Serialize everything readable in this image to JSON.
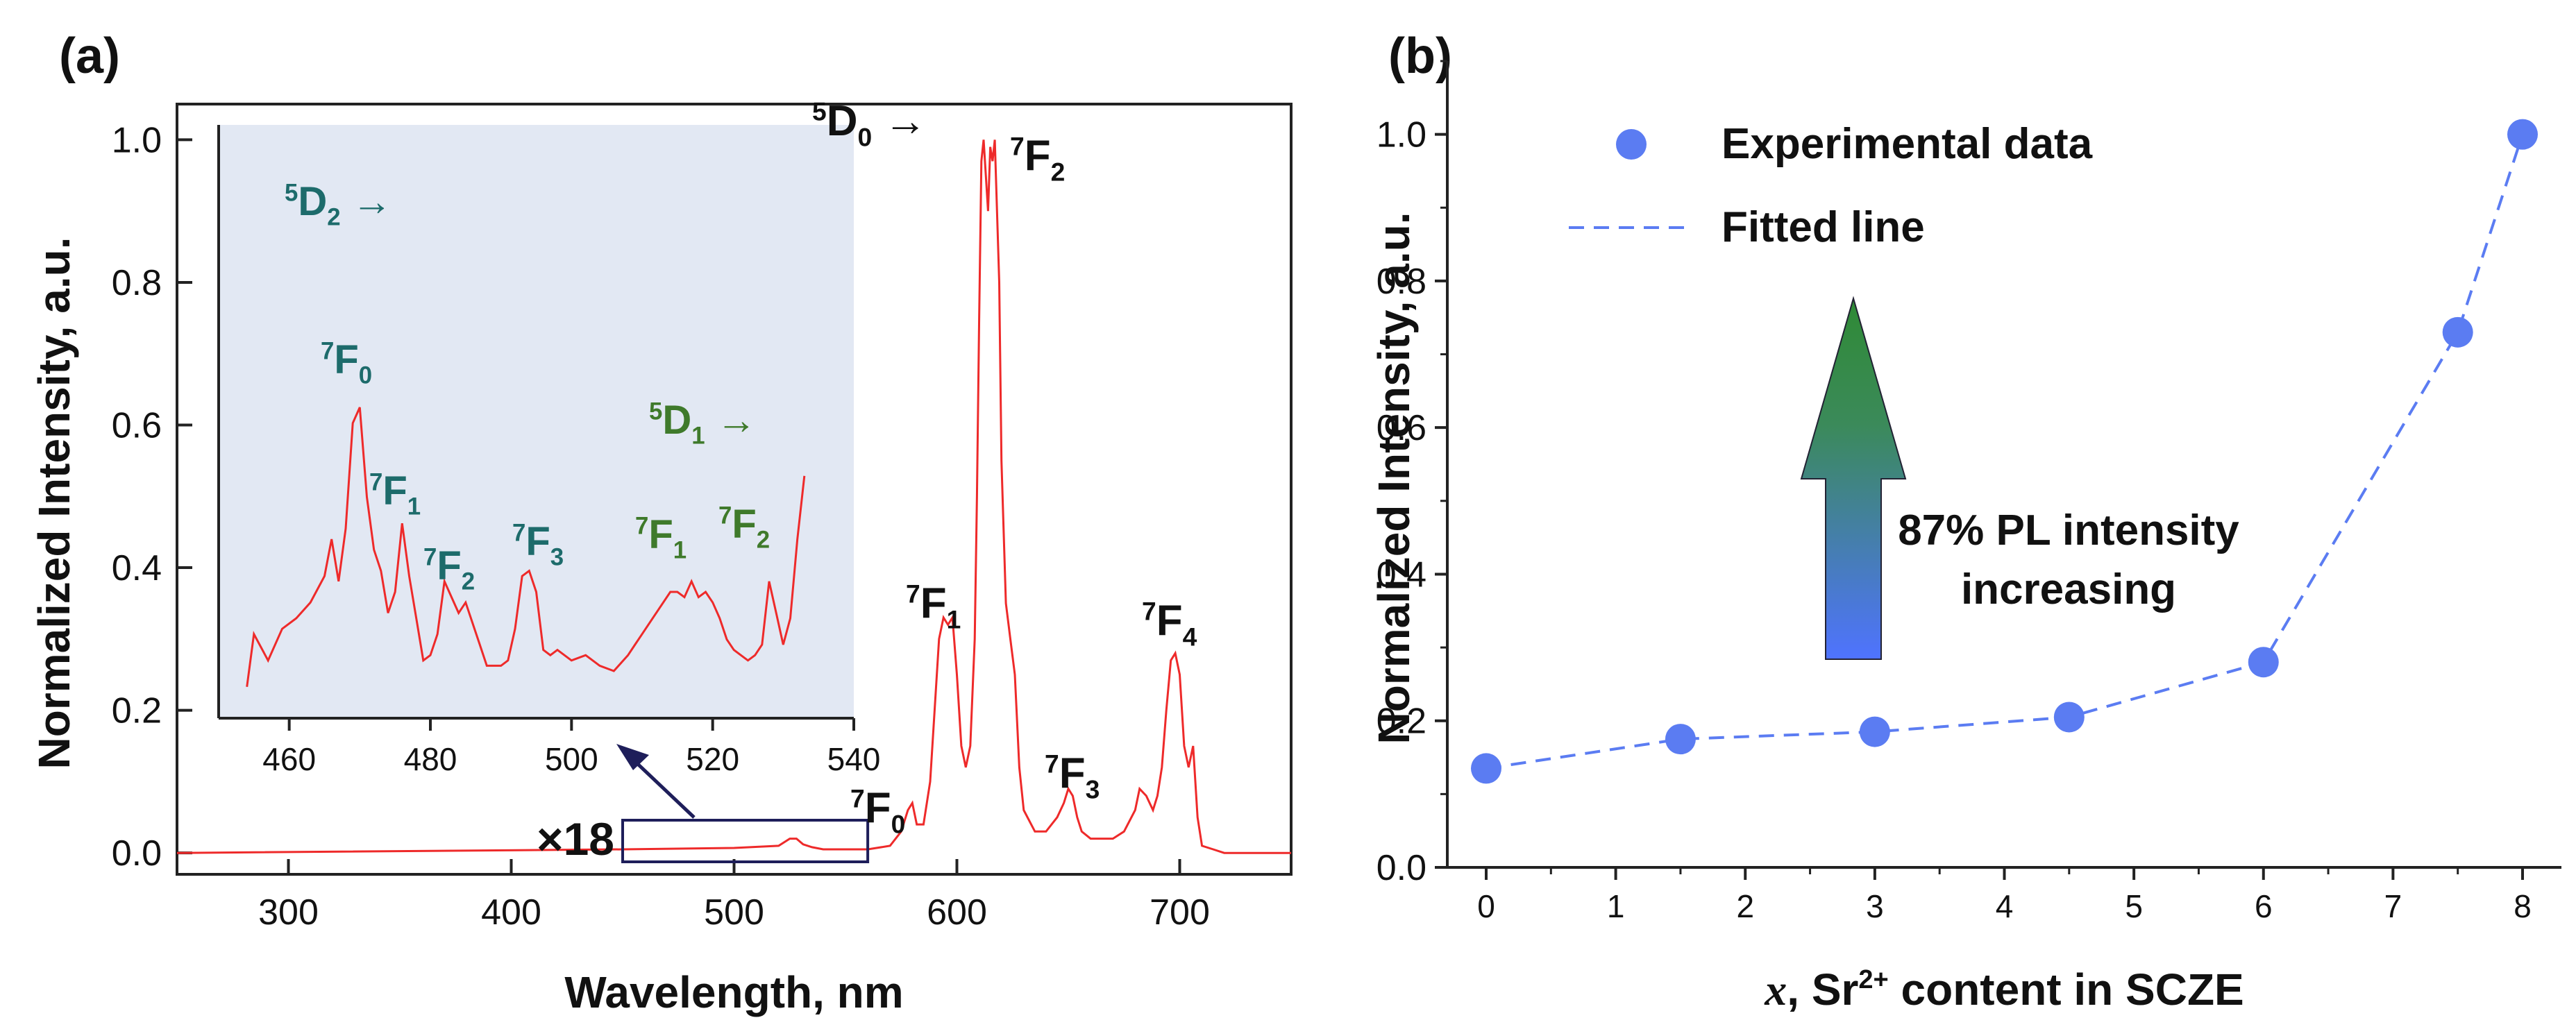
{
  "panel_a": {
    "label": "(a)",
    "inset_magnifier": "×18",
    "peak_labels": [
      {
        "head": "5",
        "main": "D",
        "sub": "0",
        "arrow": " →",
        "key": "5D0-arrow"
      },
      {
        "head": "7",
        "main": "F",
        "sub": "2",
        "key": "7F2"
      },
      {
        "head": "7",
        "main": "F",
        "sub": "1",
        "key": "7F1"
      },
      {
        "head": "7",
        "main": "F",
        "sub": "4",
        "key": "7F4"
      },
      {
        "head": "7",
        "main": "F",
        "sub": "3",
        "key": "7F3"
      },
      {
        "head": "7",
        "main": "F",
        "sub": "0",
        "key": "7F0"
      }
    ],
    "inset_labels": [
      {
        "head": "5",
        "main": "D",
        "sub": "2",
        "arrow": " →",
        "key": "5D2-arrow"
      },
      {
        "head": "7",
        "main": "F",
        "sub": "0",
        "key": "in-7F0"
      },
      {
        "head": "5",
        "main": "D",
        "sub": "1",
        "arrow": " →",
        "key": "5D1-arrow"
      },
      {
        "head": "7",
        "main": "F",
        "sub": "1",
        "key": "in-7F1"
      },
      {
        "head": "7",
        "main": "F",
        "sub": "2",
        "key": "in-7F2"
      },
      {
        "head": "7",
        "main": "F",
        "sub": "3",
        "key": "in-7F3"
      },
      {
        "head": "7",
        "main": "F",
        "sub": "1",
        "key": "in-7F1b"
      },
      {
        "head": "7",
        "main": "F",
        "sub": "2",
        "key": "in-7F2b"
      }
    ]
  },
  "panel_b": {
    "label": "(b)",
    "annotation_line1": "87% PL intensity",
    "annotation_line2": "increasing",
    "xlabel_var": "x",
    "xlabel_rest": ", Sr",
    "xlabel_sup": "2+",
    "xlabel_tail": " content in SCZE"
  },
  "colors": {
    "spectrum": "#ee2a2a",
    "inset_bg": "#e2e8f3",
    "inset_label_teal": "#1d6b6b",
    "inset_label_green": "#3f7a2b",
    "points": "#5b7cf2",
    "fit": "#5b7cf2",
    "arrow_top": "#2f8a35",
    "arrow_bottom": "#4f73ff",
    "frame": "#222222",
    "box": "#1e1e5a"
  },
  "chart_data": [
    {
      "type": "line",
      "panel": "a",
      "xlabel": "Wavelength, nm",
      "ylabel": "Normalized Intensity, a.u.",
      "xlim": [
        250,
        750
      ],
      "ylim": [
        -0.03,
        1.05
      ],
      "xticks": [
        300,
        400,
        500,
        600,
        700
      ],
      "yticks": [
        0.0,
        0.2,
        0.4,
        0.6,
        0.8,
        1.0
      ],
      "tick_labels_y": [
        "0.0",
        "0.2",
        "0.4",
        "0.6",
        "0.8",
        "1.0"
      ],
      "grid": false,
      "series": [
        {
          "x": [
            250,
            450,
            500,
            520,
            525,
            528,
            531,
            535,
            540,
            560,
            570,
            575,
            578,
            580,
            582,
            585,
            588,
            590,
            592,
            594,
            596,
            598,
            600,
            602,
            604,
            606,
            608,
            609,
            610,
            611,
            612,
            613,
            614,
            615,
            616,
            617,
            618,
            619,
            620,
            621,
            622,
            624,
            626,
            628,
            630,
            635,
            640,
            645,
            648,
            650,
            652,
            654,
            656,
            660,
            665,
            670,
            675,
            680,
            682,
            685,
            688,
            690,
            692,
            694,
            696,
            698,
            700,
            702,
            704,
            706,
            708,
            710,
            715,
            720,
            750
          ],
          "y": [
            0.0,
            0.005,
            0.007,
            0.01,
            0.02,
            0.02,
            0.012,
            0.008,
            0.005,
            0.005,
            0.01,
            0.03,
            0.06,
            0.07,
            0.04,
            0.04,
            0.1,
            0.2,
            0.3,
            0.33,
            0.32,
            0.33,
            0.25,
            0.15,
            0.12,
            0.15,
            0.3,
            0.5,
            0.75,
            0.97,
            1.0,
            0.95,
            0.9,
            0.99,
            0.97,
            1.0,
            0.9,
            0.8,
            0.55,
            0.45,
            0.35,
            0.3,
            0.25,
            0.12,
            0.06,
            0.03,
            0.03,
            0.05,
            0.07,
            0.09,
            0.08,
            0.05,
            0.03,
            0.02,
            0.02,
            0.02,
            0.03,
            0.06,
            0.09,
            0.08,
            0.06,
            0.08,
            0.12,
            0.2,
            0.27,
            0.28,
            0.25,
            0.15,
            0.12,
            0.15,
            0.05,
            0.01,
            0.005,
            0.0,
            0.0
          ]
        }
      ],
      "inset": {
        "xlim": [
          450,
          540
        ],
        "ylim": [
          0,
          1
        ],
        "xticks": [
          460,
          480,
          500,
          520,
          540
        ],
        "x": [
          454,
          455,
          457,
          459,
          461,
          463,
          465,
          466,
          467,
          468,
          469,
          470,
          471,
          472,
          473,
          474,
          475,
          476,
          477,
          478,
          479,
          480,
          481,
          482,
          483,
          484,
          485,
          486,
          487,
          488,
          489,
          490,
          491,
          492,
          493,
          494,
          495,
          496,
          497,
          498,
          500,
          502,
          504,
          506,
          508,
          509,
          510,
          512,
          514,
          515,
          516,
          517,
          518,
          519,
          520,
          521,
          522,
          523,
          524,
          525,
          526,
          527,
          528,
          529,
          530,
          531,
          532,
          533
        ],
        "y": [
          0.02,
          0.12,
          0.07,
          0.13,
          0.15,
          0.18,
          0.23,
          0.3,
          0.22,
          0.32,
          0.52,
          0.55,
          0.38,
          0.28,
          0.24,
          0.16,
          0.2,
          0.33,
          0.23,
          0.15,
          0.07,
          0.08,
          0.12,
          0.22,
          0.19,
          0.16,
          0.18,
          0.14,
          0.1,
          0.06,
          0.06,
          0.06,
          0.07,
          0.13,
          0.23,
          0.24,
          0.2,
          0.09,
          0.08,
          0.09,
          0.07,
          0.08,
          0.06,
          0.05,
          0.08,
          0.1,
          0.12,
          0.16,
          0.2,
          0.2,
          0.19,
          0.22,
          0.19,
          0.2,
          0.18,
          0.15,
          0.11,
          0.09,
          0.08,
          0.07,
          0.08,
          0.1,
          0.22,
          0.16,
          0.1,
          0.15,
          0.3,
          0.42
        ]
      }
    },
    {
      "type": "scatter",
      "panel": "b",
      "xlabel": "x, Sr2+ content in SCZE",
      "ylabel": "Normalized Intensity, a.u.",
      "xlim": [
        -0.3,
        8.3
      ],
      "ylim": [
        0.0,
        1.1
      ],
      "xticks": [
        0,
        1,
        2,
        3,
        4,
        5,
        6,
        7,
        8
      ],
      "yticks": [
        0.0,
        0.2,
        0.4,
        0.6,
        0.8,
        1.0
      ],
      "tick_labels_y": [
        "0.0",
        "0.2",
        "0.4",
        "0.6",
        "0.8",
        "1.0"
      ],
      "grid": false,
      "legend_position": "top-left",
      "series": [
        {
          "name": "Experimental data",
          "style": "markers",
          "x": [
            0,
            1.5,
            3,
            4.5,
            6,
            7.5,
            8
          ],
          "y": [
            0.135,
            0.175,
            0.185,
            0.205,
            0.28,
            0.73,
            1.0
          ]
        },
        {
          "name": "Fitted line",
          "style": "dashed",
          "x": [
            0,
            1.5,
            3,
            4.5,
            6,
            7.5,
            8
          ],
          "y": [
            0.135,
            0.175,
            0.185,
            0.205,
            0.28,
            0.73,
            1.0
          ]
        }
      ]
    }
  ]
}
